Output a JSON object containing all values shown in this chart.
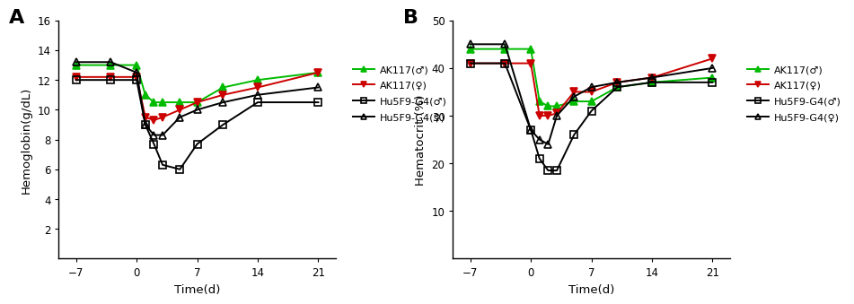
{
  "panel_A": {
    "title": "A",
    "ylabel": "Hemoglobin(g/dL)",
    "xlabel": "Time(d)",
    "ylim": [
      0,
      16
    ],
    "yticks": [
      2,
      4,
      6,
      8,
      10,
      12,
      14,
      16
    ],
    "xlim": [
      -9,
      23
    ],
    "xticks": [
      -7,
      0,
      7,
      14,
      21
    ],
    "series": {
      "AK117_male": {
        "x": [
          -7,
          -3,
          0,
          1,
          2,
          3,
          5,
          7,
          10,
          14,
          21
        ],
        "y": [
          13.0,
          13.0,
          13.0,
          11.0,
          10.5,
          10.5,
          10.5,
          10.5,
          11.5,
          12.0,
          12.5
        ],
        "color": "#00bb00",
        "marker": "^",
        "filled": true,
        "label": "AK117(♂)"
      },
      "AK117_female": {
        "x": [
          -7,
          -3,
          0,
          1,
          2,
          3,
          5,
          7,
          10,
          14,
          21
        ],
        "y": [
          12.2,
          12.2,
          12.2,
          9.5,
          9.3,
          9.5,
          10.0,
          10.5,
          11.0,
          11.5,
          12.5
        ],
        "color": "#cc0000",
        "marker": "v",
        "filled": true,
        "label": "AK117(♀)"
      },
      "Hu5F9_male": {
        "x": [
          -7,
          -3,
          0,
          1,
          2,
          3,
          5,
          7,
          10,
          14,
          21
        ],
        "y": [
          12.0,
          12.0,
          12.0,
          9.0,
          7.7,
          6.3,
          6.0,
          7.7,
          9.0,
          10.5,
          10.5
        ],
        "color": "#000000",
        "marker": "s",
        "filled": false,
        "label": "Hu5F9-G4(♂)"
      },
      "Hu5F9_female": {
        "x": [
          -7,
          -3,
          0,
          1,
          2,
          3,
          5,
          7,
          10,
          14,
          21
        ],
        "y": [
          13.2,
          13.2,
          12.5,
          9.0,
          8.3,
          8.3,
          9.5,
          10.0,
          10.5,
          11.0,
          11.5
        ],
        "color": "#000000",
        "marker": "^",
        "filled": false,
        "label": "Hu5F9-G4(♀)"
      }
    }
  },
  "panel_B": {
    "title": "B",
    "ylabel": "Hematocrit (%)",
    "xlabel": "Time(d)",
    "ylim": [
      0,
      50
    ],
    "yticks": [
      10,
      20,
      30,
      40,
      50
    ],
    "xlim": [
      -9,
      23
    ],
    "xticks": [
      -7,
      0,
      7,
      14,
      21
    ],
    "series": {
      "AK117_male": {
        "x": [
          -7,
          -3,
          0,
          1,
          2,
          3,
          5,
          7,
          10,
          14,
          21
        ],
        "y": [
          44.0,
          44.0,
          44.0,
          33.0,
          32.0,
          32.0,
          33.0,
          33.0,
          36.0,
          37.0,
          38.0
        ],
        "color": "#00bb00",
        "marker": "^",
        "filled": true,
        "label": "AK117(♂)"
      },
      "AK117_female": {
        "x": [
          -7,
          -3,
          0,
          1,
          2,
          3,
          5,
          7,
          10,
          14,
          21
        ],
        "y": [
          41.0,
          41.0,
          41.0,
          30.0,
          30.0,
          30.5,
          35.0,
          35.0,
          37.0,
          38.0,
          42.0
        ],
        "color": "#cc0000",
        "marker": "v",
        "filled": true,
        "label": "AK117(♀)"
      },
      "Hu5F9_male": {
        "x": [
          -7,
          -3,
          0,
          1,
          2,
          3,
          5,
          7,
          10,
          14,
          21
        ],
        "y": [
          41.0,
          41.0,
          27.0,
          21.0,
          18.5,
          18.5,
          26.0,
          31.0,
          36.0,
          37.0,
          37.0
        ],
        "color": "#000000",
        "marker": "s",
        "filled": false,
        "label": "Hu5F9-G4(♂)"
      },
      "Hu5F9_female": {
        "x": [
          -7,
          -3,
          0,
          1,
          2,
          3,
          5,
          7,
          10,
          14,
          21
        ],
        "y": [
          45.0,
          45.0,
          27.0,
          25.0,
          24.0,
          30.0,
          34.0,
          36.0,
          37.0,
          38.0,
          40.0
        ],
        "color": "#000000",
        "marker": "^",
        "filled": false,
        "label": "Hu5F9-G4(♀)"
      }
    }
  },
  "background_color": "#ffffff",
  "linewidth": 1.4,
  "markersize": 5.5,
  "legend_fontsize": 8,
  "axis_label_fontsize": 9.5,
  "tick_fontsize": 8.5,
  "panel_label_fontsize": 16
}
